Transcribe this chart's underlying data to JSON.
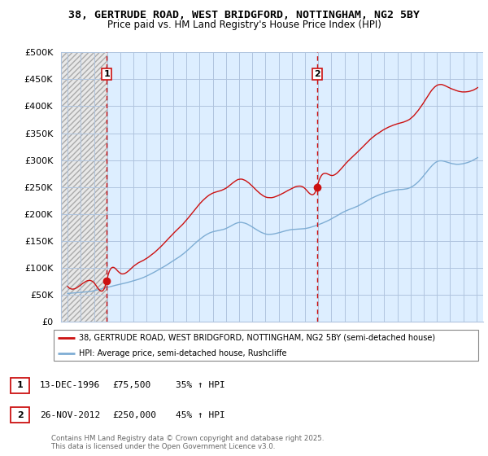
{
  "title": "38, GERTRUDE ROAD, WEST BRIDGFORD, NOTTINGHAM, NG2 5BY",
  "subtitle": "Price paid vs. HM Land Registry's House Price Index (HPI)",
  "xlim": [
    1993.5,
    2025.5
  ],
  "ylim": [
    0,
    500000
  ],
  "yticks": [
    0,
    50000,
    100000,
    150000,
    200000,
    250000,
    300000,
    350000,
    400000,
    450000,
    500000
  ],
  "ytick_labels": [
    "£0",
    "£50K",
    "£100K",
    "£150K",
    "£200K",
    "£250K",
    "£300K",
    "£350K",
    "£400K",
    "£450K",
    "£500K"
  ],
  "xticks": [
    1994,
    1995,
    1996,
    1997,
    1998,
    1999,
    2000,
    2001,
    2002,
    2003,
    2004,
    2005,
    2006,
    2007,
    2008,
    2009,
    2010,
    2011,
    2012,
    2013,
    2014,
    2015,
    2016,
    2017,
    2018,
    2019,
    2020,
    2021,
    2022,
    2023,
    2024,
    2025
  ],
  "hpi_color": "#7eadd4",
  "price_color": "#cc1111",
  "dashed_vline_color": "#cc1111",
  "bg_blue": "#ddeeff",
  "bg_hatch_color": "#c8c8c8",
  "grid_color": "#b0c4de",
  "sale1_year": 1996.96,
  "sale1_price": 75500,
  "sale1_label": "1",
  "sale2_year": 2012.91,
  "sale2_price": 250000,
  "sale2_label": "2",
  "legend_label_price": "38, GERTRUDE ROAD, WEST BRIDGFORD, NOTTINGHAM, NG2 5BY (semi-detached house)",
  "legend_label_hpi": "HPI: Average price, semi-detached house, Rushcliffe",
  "fn1_num": "1",
  "fn1_date": "13-DEC-1996",
  "fn1_price": "£75,500",
  "fn1_hpi": "35% ↑ HPI",
  "fn2_num": "2",
  "fn2_date": "26-NOV-2012",
  "fn2_price": "£250,000",
  "fn2_hpi": "45% ↑ HPI",
  "copyright": "Contains HM Land Registry data © Crown copyright and database right 2025.\nThis data is licensed under the Open Government Licence v3.0."
}
